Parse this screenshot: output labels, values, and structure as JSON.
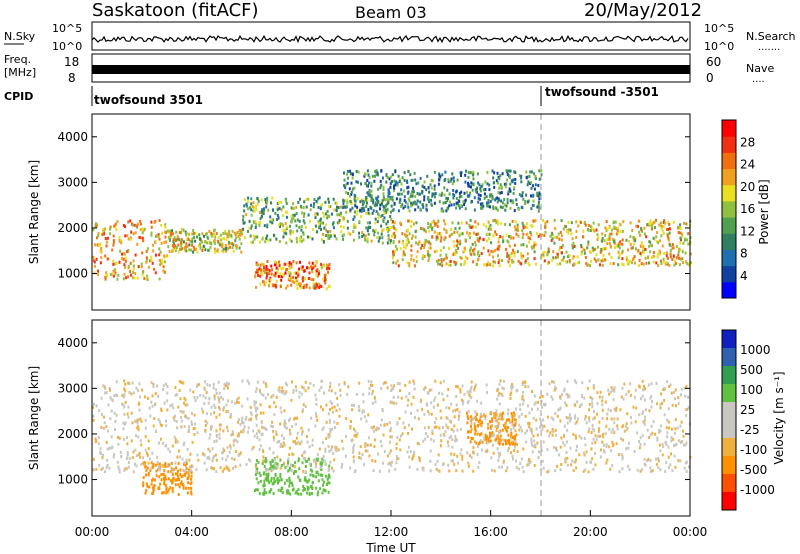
{
  "header": {
    "station": "Saskatoon (fitACF)",
    "beam": "Beam 03",
    "date": "20/May/2012"
  },
  "nsky_panel": {
    "left_label": "N.Sky",
    "right_label": "N.Search",
    "right_sub_label": ".......",
    "left_ticks": [
      "10^5",
      "10^0"
    ],
    "right_ticks": [
      "10^5",
      "10^0"
    ]
  },
  "freq_panel": {
    "left_label_1": "Freq.",
    "left_label_2": "[MHz]",
    "left_ticks": [
      "18",
      "8"
    ],
    "right_label": "Nave",
    "right_sub_label": "....",
    "right_ticks": [
      "60",
      "0"
    ]
  },
  "cpid_panel": {
    "label": "CPID",
    "entries": [
      {
        "text": "twofsound 3501",
        "start_hour": 0
      },
      {
        "text": "twofsound -3501",
        "start_hour": 18
      }
    ]
  },
  "colors": {
    "power_scale": [
      "#0000ff",
      "#1040a0",
      "#2070b0",
      "#308060",
      "#50a050",
      "#90c040",
      "#e8e020",
      "#f0a020",
      "#f07010",
      "#f03010",
      "#ff0000"
    ],
    "velocity_scale": [
      "#ff0000",
      "#ff5000",
      "#ff9000",
      "#f0b040",
      "#c8c8c0",
      "#c8c8c0",
      "#60c040",
      "#30a050",
      "#3060b0",
      "#1020c0"
    ]
  },
  "chart_data": [
    {
      "type": "heatmap",
      "name_label": "Power",
      "ylabel": "Slant Range [km]",
      "colorbar_label": "Power [dB]",
      "colorbar_ticks": [
        "28",
        "24",
        "20",
        "16",
        "12",
        "8",
        "4"
      ],
      "colorbar_range": [
        0,
        32
      ],
      "yticks": [
        "4000",
        "3000",
        "2000",
        "1000"
      ],
      "ylim": [
        200,
        4500
      ],
      "xlim_hours": [
        0,
        24
      ],
      "scatter_bands": [
        {
          "start_hour": 0,
          "end_hour": 3,
          "range_km": [
            900,
            2200
          ],
          "power_db": 22
        },
        {
          "start_hour": 3,
          "end_hour": 6,
          "range_km": [
            1500,
            2000
          ],
          "power_db": 18
        },
        {
          "start_hour": 6.5,
          "end_hour": 9.5,
          "range_km": [
            700,
            1300
          ],
          "power_db": 24
        },
        {
          "start_hour": 6,
          "end_hour": 12,
          "range_km": [
            1700,
            2700
          ],
          "power_db": 14
        },
        {
          "start_hour": 12,
          "end_hour": 24,
          "range_km": [
            1200,
            2200
          ],
          "power_db": 20
        },
        {
          "start_hour": 10,
          "end_hour": 18,
          "range_km": [
            2400,
            3300
          ],
          "power_db": 10
        }
      ]
    },
    {
      "type": "heatmap",
      "name_label": "Velocity",
      "ylabel": "Slant Range [km]",
      "colorbar_label": "Velocity [m s⁻¹]",
      "colorbar_ticks": [
        "1000",
        "500",
        "100",
        "25",
        "-25",
        "-100",
        "-500",
        "-1000"
      ],
      "yticks": [
        "4000",
        "3000",
        "2000",
        "1000"
      ],
      "ylim": [
        200,
        4500
      ],
      "xlim_hours": [
        0,
        24
      ],
      "xticks": [
        "00:00",
        "04:00",
        "08:00",
        "12:00",
        "16:00",
        "20:00",
        "00:00"
      ],
      "xlabel": "Time UT",
      "scatter_bands": [
        {
          "start_hour": 2,
          "end_hour": 4,
          "range_km": [
            700,
            1400
          ],
          "velocity": -300
        },
        {
          "start_hour": 6.5,
          "end_hour": 9.5,
          "range_km": [
            700,
            1500
          ],
          "velocity": 400
        },
        {
          "start_hour": 15,
          "end_hour": 17,
          "range_km": [
            1800,
            2500
          ],
          "velocity": -300
        },
        {
          "start_hour": 0,
          "end_hour": 24,
          "range_km": [
            1200,
            3200
          ],
          "velocity": 0
        }
      ]
    }
  ]
}
